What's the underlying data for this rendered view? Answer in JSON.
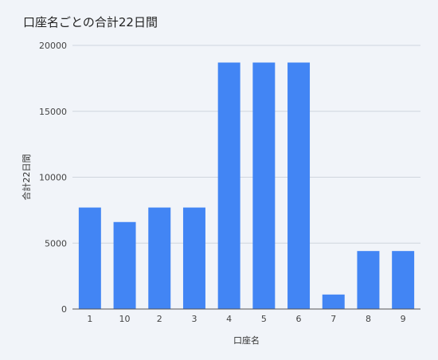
{
  "chart_data": {
    "type": "bar",
    "title": "口座名ごとの合計22日間",
    "xlabel": "口座名",
    "ylabel": "合計22日間",
    "categories": [
      "1",
      "10",
      "2",
      "3",
      "4",
      "5",
      "6",
      "7",
      "8",
      "9"
    ],
    "series": [
      {
        "values": [
          7700,
          6600,
          7700,
          7700,
          18700,
          18700,
          18700,
          1100,
          4400,
          4400
        ]
      }
    ],
    "ylim": [
      0,
      20000
    ],
    "yticks": [
      0,
      5000,
      10000,
      15000,
      20000
    ],
    "grid": true,
    "legend": "none",
    "colors": {
      "bar": "#4285f4",
      "grid": "#cfd5de",
      "baseline": "#555555",
      "background": "#f1f4f9"
    }
  }
}
